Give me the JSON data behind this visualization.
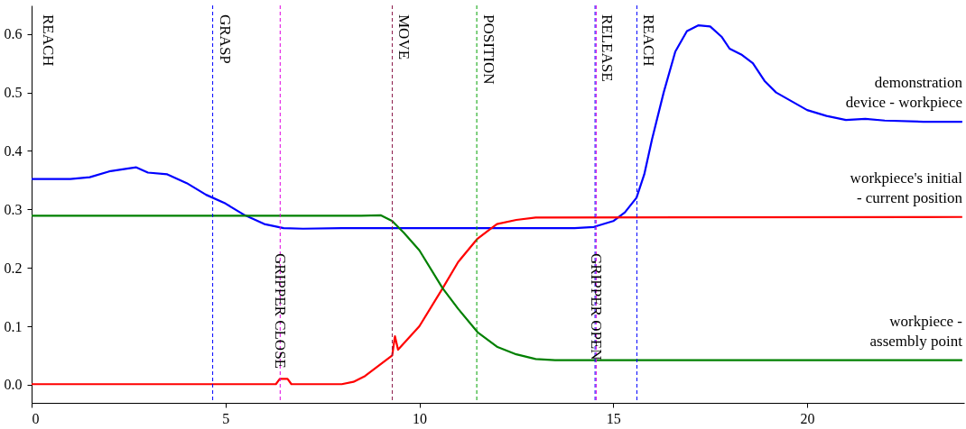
{
  "chart_data": {
    "type": "line",
    "series": [
      {
        "name": "demonstration device - workpiece",
        "color": "#0000ff",
        "x": [
          0,
          1,
          1.5,
          2,
          2.5,
          2.7,
          3,
          3.5,
          4,
          4.5,
          5,
          5.5,
          6,
          6.5,
          7,
          8,
          9,
          10,
          12,
          14,
          14.5,
          15,
          15.3,
          15.6,
          15.8,
          16,
          16.3,
          16.6,
          16.9,
          17.2,
          17.5,
          17.8,
          18,
          18.3,
          18.6,
          18.9,
          19.2,
          19.6,
          20,
          20.5,
          21,
          21.5,
          22,
          23,
          24
        ],
        "values": [
          0.352,
          0.352,
          0.355,
          0.365,
          0.37,
          0.372,
          0.363,
          0.36,
          0.345,
          0.325,
          0.31,
          0.29,
          0.275,
          0.268,
          0.267,
          0.268,
          0.268,
          0.268,
          0.268,
          0.268,
          0.27,
          0.28,
          0.295,
          0.32,
          0.36,
          0.42,
          0.5,
          0.57,
          0.605,
          0.615,
          0.613,
          0.595,
          0.575,
          0.565,
          0.55,
          0.52,
          0.5,
          0.485,
          0.47,
          0.46,
          0.453,
          0.455,
          0.452,
          0.45,
          0.45
        ]
      },
      {
        "name": "workpiece's initial - current position",
        "color": "#ff0000",
        "x": [
          0,
          6.3,
          6.4,
          6.6,
          6.7,
          8,
          8.3,
          8.6,
          9,
          9.3,
          9.37,
          9.45,
          10,
          10.6,
          11,
          11.5,
          12,
          12.5,
          13,
          24
        ],
        "values": [
          0.001,
          0.001,
          0.01,
          0.01,
          0.001,
          0.001,
          0.005,
          0.015,
          0.035,
          0.05,
          0.083,
          0.06,
          0.1,
          0.165,
          0.21,
          0.25,
          0.275,
          0.282,
          0.286,
          0.287
        ]
      },
      {
        "name": "workpiece - assembly point",
        "color": "#008000",
        "x": [
          0,
          8.5,
          9,
          9.3,
          9.6,
          10,
          10.6,
          11,
          11.5,
          12,
          12.5,
          13,
          13.5,
          24
        ],
        "values": [
          0.289,
          0.289,
          0.29,
          0.28,
          0.26,
          0.23,
          0.165,
          0.13,
          0.09,
          0.065,
          0.052,
          0.044,
          0.042,
          0.042
        ]
      }
    ],
    "xlim": [
      0,
      24.05
    ],
    "xticks": [
      0,
      5,
      10,
      15,
      20
    ],
    "ylim": [
      -0.031,
      0.649
    ],
    "yticks": [
      {
        "value": 0,
        "label": "0.0"
      },
      0.1,
      0.2,
      0.3,
      0.4,
      0.5,
      0.6
    ],
    "ref_lines": [
      {
        "axis": "x",
        "value": 4.67,
        "label": "GRASP",
        "color": "#0000ff",
        "line_style": "dashed"
      },
      {
        "axis": "x",
        "value": 6.41,
        "color": "#e000e0",
        "line_style": "dashed"
      },
      {
        "axis": "x",
        "value": 9.3,
        "label": "MOVE",
        "color": "#8b1a4a",
        "line_style": "dashed"
      },
      {
        "axis": "x",
        "value": 11.48,
        "label": "POSITION",
        "color": "#00a000",
        "line_style": "dashed"
      },
      {
        "axis": "x",
        "value": 14.53,
        "label": "RELEASE",
        "color": "#0000ff",
        "line_style": "dashed"
      },
      {
        "axis": "x",
        "value": 14.56,
        "color": "#e000e0",
        "line_style": "dashed"
      },
      {
        "axis": "x",
        "value": 15.61,
        "label": "REACH",
        "color": "#0000ff",
        "line_style": "dashed"
      }
    ],
    "annotations": [
      "REACH",
      {
        "text": "GRIPPER CLOSE",
        "x": 6.41,
        "y": 0.225
      },
      {
        "text": "GRIPPER OPEN",
        "x": 14.55,
        "y": 0.225
      }
    ]
  }
}
